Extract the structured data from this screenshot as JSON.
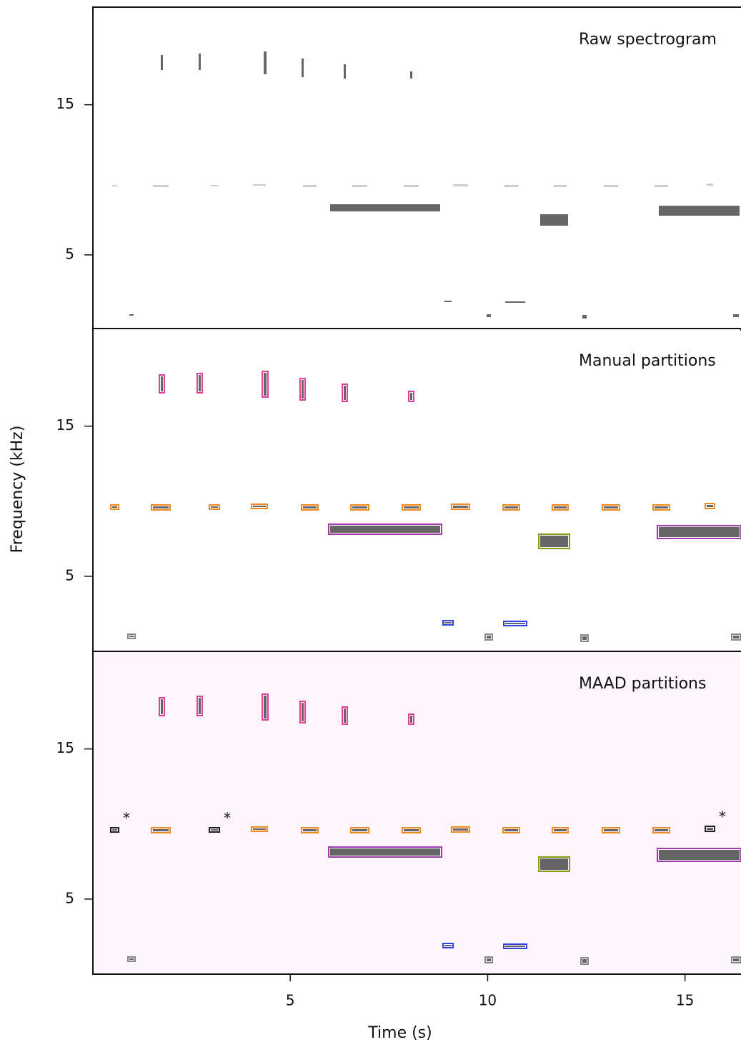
{
  "chart_data": [
    {
      "type": "spectrogram",
      "title": "Raw spectrogram",
      "ylim": [
        0,
        21.5
      ],
      "yticks": [
        5,
        15
      ]
    },
    {
      "type": "spectrogram",
      "title": "Manual partitions",
      "ylabel": "Frequency (kHz)",
      "ylim": [
        0,
        21.5
      ],
      "yticks": [
        5,
        15
      ]
    },
    {
      "type": "spectrogram",
      "title": "MAAD partitions",
      "ylim": [
        0,
        21.5
      ],
      "yticks": [
        5,
        15
      ],
      "markers": [
        "*",
        "*",
        "*"
      ],
      "xlabel": "Time (s)",
      "xlim": [
        0,
        16.4
      ],
      "xticks": [
        5,
        10,
        15
      ]
    }
  ]
}
